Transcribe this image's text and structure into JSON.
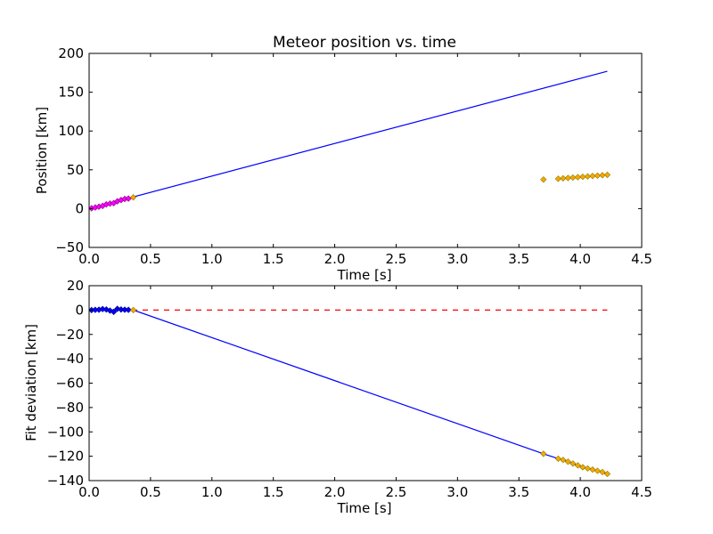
{
  "chart_data": [
    {
      "type": "line",
      "title": "Meteor position vs. time",
      "xlabel": "Time [s]",
      "ylabel": "Position [km]",
      "xlim": [
        0,
        4.5
      ],
      "ylim": [
        -50,
        200
      ],
      "xticks": [
        "0.0",
        "0.5",
        "1.0",
        "1.5",
        "2.0",
        "2.5",
        "3.0",
        "3.5",
        "4.0",
        "4.5"
      ],
      "yticks": [
        "−50",
        "0",
        "50",
        "100",
        "150",
        "200"
      ],
      "grid": false,
      "series": [
        {
          "kind": "line",
          "color": "#0000ff",
          "x": [
            0.0,
            4.22
          ],
          "y": [
            0.0,
            177.0
          ]
        },
        {
          "kind": "markers",
          "color": "#ff00ff",
          "edge": "#800080",
          "x": [
            0.02,
            0.05,
            0.08,
            0.11,
            0.14,
            0.17,
            0.2,
            0.23,
            0.26,
            0.29,
            0.32
          ],
          "y": [
            0.5,
            1.5,
            2.5,
            3.5,
            5.5,
            6.5,
            7.0,
            9.5,
            11.0,
            12.5,
            13.0
          ]
        },
        {
          "kind": "markers",
          "color": "#ffa500",
          "edge": "#808000",
          "x": [
            0.36,
            3.7,
            3.82,
            3.86,
            3.9,
            3.94,
            3.98,
            4.02,
            4.06,
            4.1,
            4.14,
            4.18,
            4.22
          ],
          "y": [
            14.5,
            37.5,
            38.5,
            39.0,
            39.5,
            40.0,
            40.5,
            41.0,
            41.5,
            42.0,
            42.5,
            43.0,
            43.5
          ]
        }
      ]
    },
    {
      "type": "line",
      "title": "",
      "xlabel": "Time [s]",
      "ylabel": "Fit deviation [km]",
      "xlim": [
        0,
        4.5
      ],
      "ylim": [
        -140,
        20
      ],
      "xticks": [
        "0.0",
        "0.5",
        "1.0",
        "1.5",
        "2.0",
        "2.5",
        "3.0",
        "3.5",
        "4.0",
        "4.5"
      ],
      "yticks": [
        "−140",
        "−120",
        "−100",
        "−80",
        "−60",
        "−40",
        "−20",
        "0",
        "20"
      ],
      "grid": false,
      "series": [
        {
          "kind": "dashed",
          "color": "#ff0000",
          "x": [
            0.0,
            4.22
          ],
          "y": [
            0.0,
            0.0
          ]
        },
        {
          "kind": "line",
          "color": "#0000ff",
          "x": [
            0.0,
            0.02,
            0.05,
            0.08,
            0.11,
            0.14,
            0.17,
            0.2,
            0.23,
            0.26,
            0.29,
            0.32,
            0.36,
            3.7,
            3.82,
            3.86,
            3.9,
            3.94,
            3.98,
            4.02,
            4.06,
            4.1,
            4.14,
            4.18,
            4.22
          ],
          "y": [
            0.0,
            0.0,
            0.2,
            0.3,
            0.8,
            0.5,
            -0.5,
            -1.5,
            1.0,
            0.5,
            0.3,
            0.2,
            0.0,
            -118.0,
            -122.0,
            -123.0,
            -124.5,
            -126.0,
            -127.5,
            -129.0,
            -130.0,
            -131.0,
            -132.0,
            -133.0,
            -134.5
          ]
        },
        {
          "kind": "markers",
          "color": "#0000ff",
          "edge": "#000080",
          "x": [
            0.02,
            0.05,
            0.08,
            0.11,
            0.14,
            0.17,
            0.2,
            0.23,
            0.26,
            0.29,
            0.32
          ],
          "y": [
            0.0,
            0.2,
            0.3,
            0.8,
            0.5,
            -0.5,
            -1.5,
            1.0,
            0.5,
            0.3,
            0.2
          ]
        },
        {
          "kind": "markers",
          "color": "#ffa500",
          "edge": "#808000",
          "x": [
            0.36,
            3.7,
            3.82,
            3.86,
            3.9,
            3.94,
            3.98,
            4.02,
            4.06,
            4.1,
            4.14,
            4.18,
            4.22
          ],
          "y": [
            0.0,
            -118.0,
            -122.0,
            -123.0,
            -124.5,
            -126.0,
            -127.5,
            -129.0,
            -130.0,
            -131.0,
            -132.0,
            -133.0,
            -134.5
          ]
        }
      ]
    }
  ]
}
